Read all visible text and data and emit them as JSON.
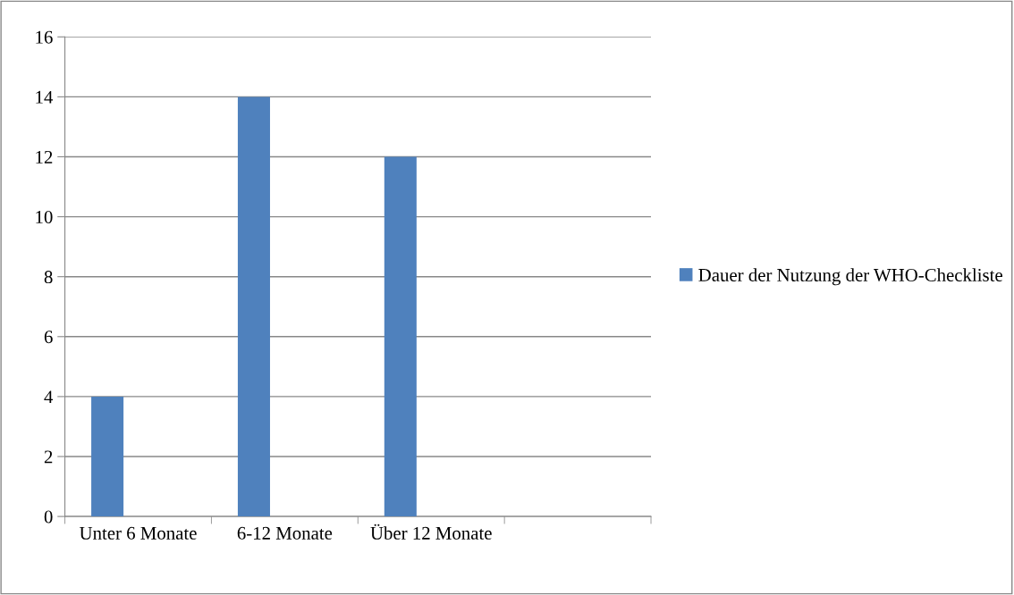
{
  "chart_data": {
    "type": "bar",
    "categories": [
      "Unter 6 Monate",
      "6-12 Monate",
      "Über 12 Monate",
      null
    ],
    "series": [
      {
        "name": "Dauer der Nutzung der WHO-Checkliste",
        "color": "#4f81bd",
        "values": [
          4,
          14,
          12,
          null
        ]
      }
    ],
    "ylim": [
      0,
      16
    ],
    "yticks": [
      0,
      2,
      4,
      6,
      8,
      10,
      12,
      14,
      16
    ],
    "grid": "y",
    "legend": "right"
  }
}
